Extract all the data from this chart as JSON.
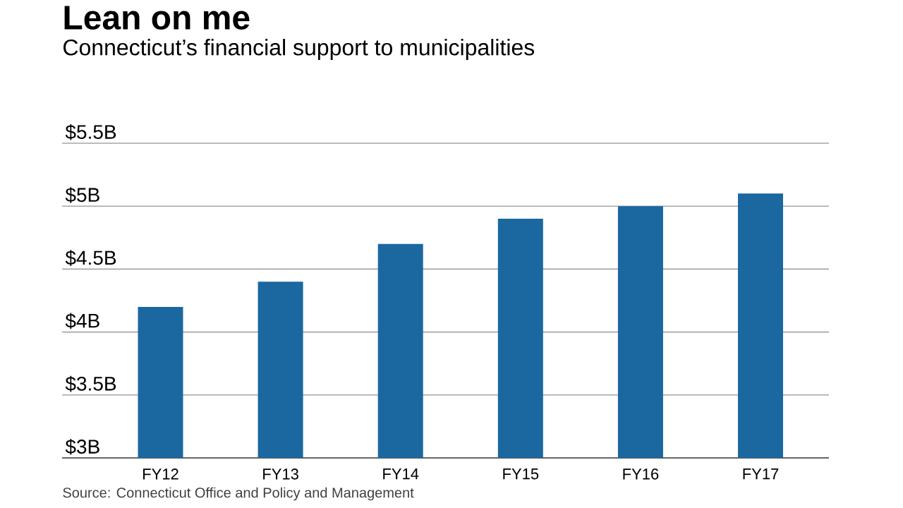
{
  "chart_data": {
    "type": "bar",
    "title": "Lean on me",
    "subtitle": "Connecticut’s financial support to municipalities",
    "categories": [
      "FY12",
      "FY13",
      "FY14",
      "FY15",
      "FY16",
      "FY17"
    ],
    "values": [
      4.2,
      4.4,
      4.7,
      4.9,
      5.0,
      5.1
    ],
    "color": "#1b67a0",
    "ylim": [
      3,
      5.5
    ],
    "yticks": [
      {
        "value": 3,
        "label": "$3B"
      },
      {
        "value": 3.5,
        "label": "$3.5B"
      },
      {
        "value": 4,
        "label": "$4B"
      },
      {
        "value": 4.5,
        "label": "$4.5B"
      },
      {
        "value": 5,
        "label": "$5B"
      },
      {
        "value": 5.5,
        "label": "$5.5B"
      }
    ],
    "grid": "y",
    "annotations": [
      "Source: Connecticut Office and Policy and Management"
    ]
  }
}
